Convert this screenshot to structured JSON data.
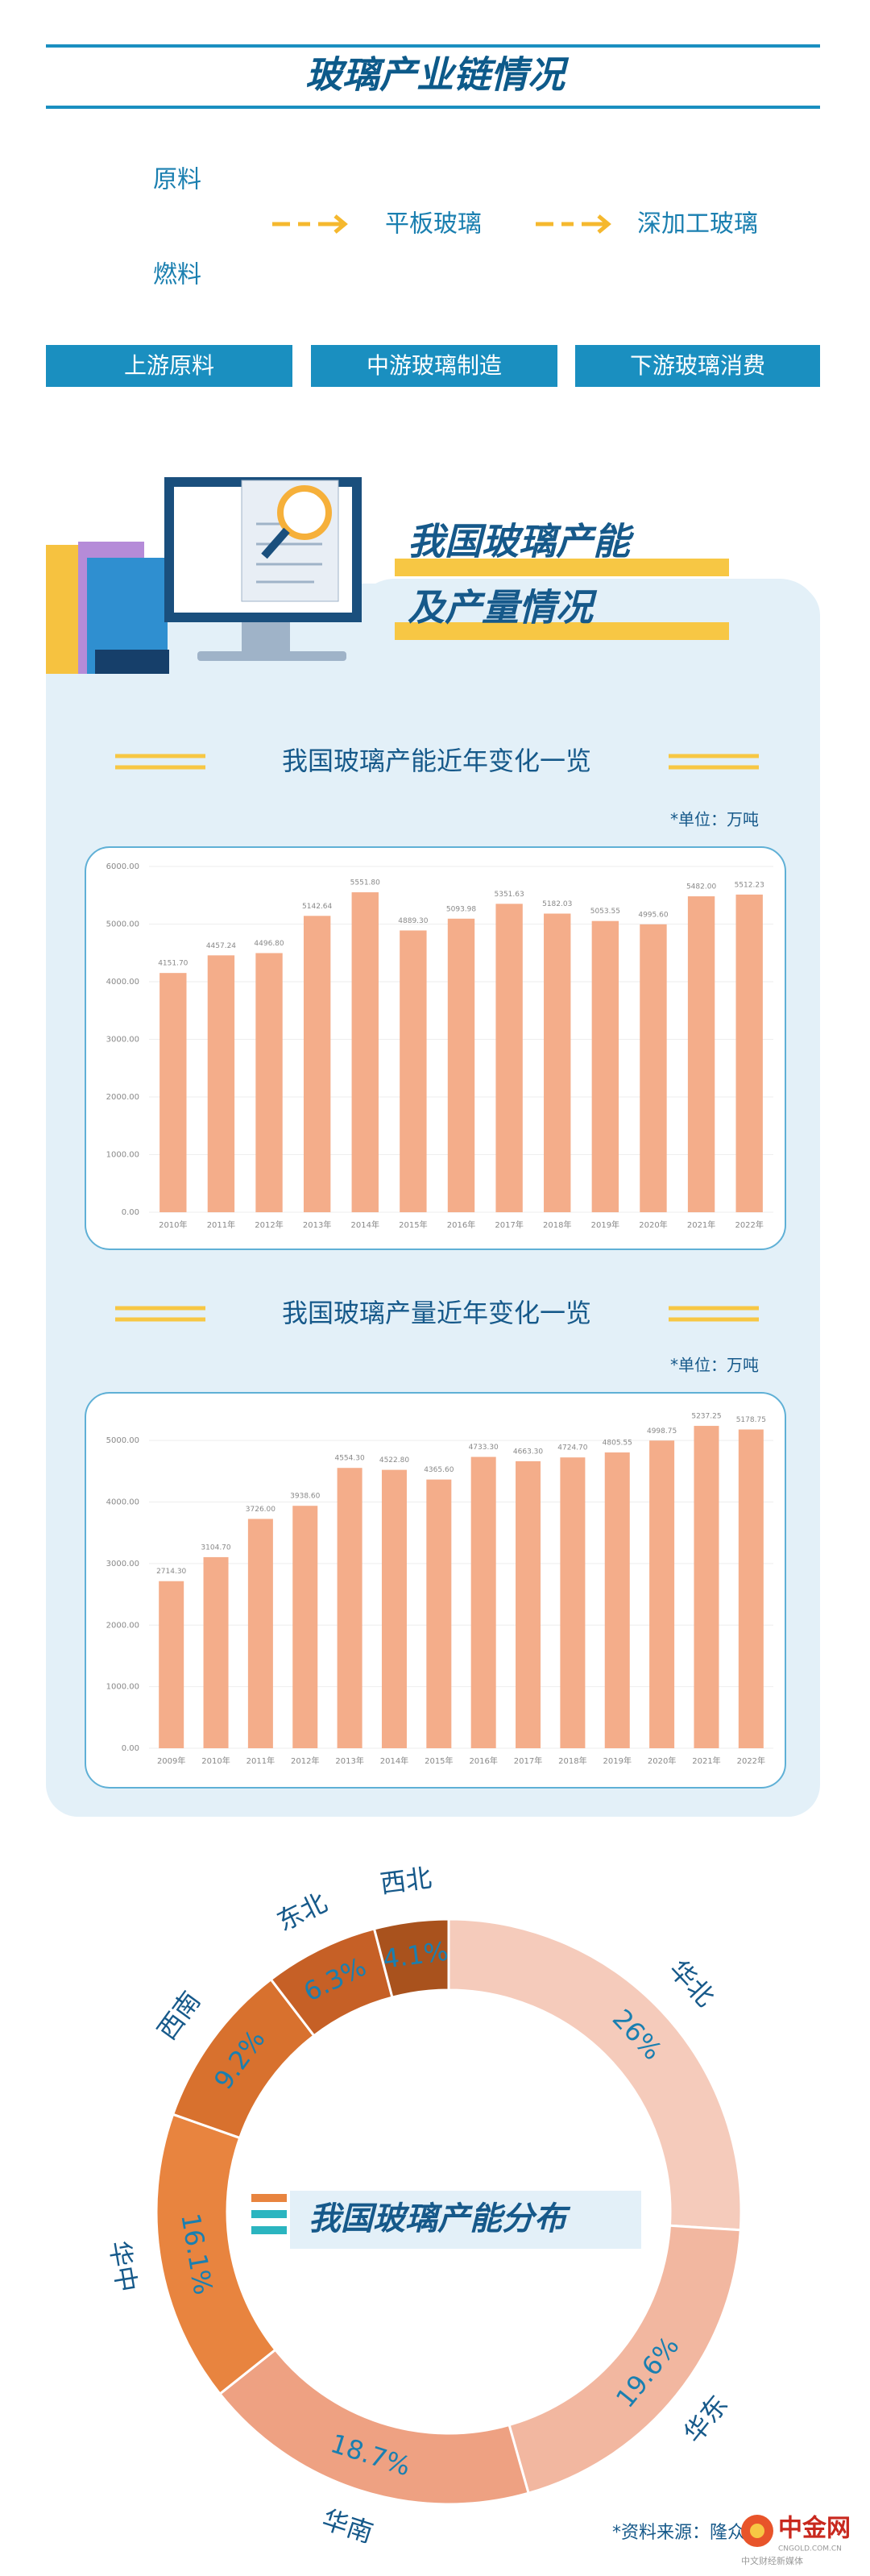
{
  "header": {
    "title": "玻璃产业链情况"
  },
  "flow": {
    "inputs": [
      "原料",
      "燃料"
    ],
    "steps": [
      "平板玻璃",
      "深加工玻璃"
    ],
    "stages": [
      "上游原料",
      "中游玻璃制造",
      "下游玻璃消费"
    ]
  },
  "section": {
    "title_lines": [
      "我国玻璃产能",
      "及产量情况"
    ]
  },
  "chart_data": [
    {
      "type": "bar",
      "title": "我国玻璃产能近年变化一览",
      "unit": "*单位：万吨",
      "categories": [
        "2010年",
        "2011年",
        "2012年",
        "2013年",
        "2014年",
        "2015年",
        "2016年",
        "2017年",
        "2018年",
        "2019年",
        "2020年",
        "2021年",
        "2022年"
      ],
      "values": [
        4151.7,
        4457.24,
        4496.8,
        5142.64,
        5551.8,
        4889.3,
        5093.98,
        5351.63,
        5182.03,
        5053.55,
        4995.6,
        5482,
        5512.23
      ],
      "value_labels": [
        "4151.70",
        "4457.24",
        "4496.80",
        "5142.64",
        "5551.80",
        "4889.30",
        "5093.98",
        "5351.63",
        "5182.03",
        "5053.55",
        "4995.60",
        "5482.00",
        "5512.23"
      ],
      "color": "#f4ad8a",
      "ylim": [
        0,
        6000
      ],
      "yticks": [
        {
          "value": 0,
          "label": "0.00"
        },
        {
          "value": 1000,
          "label": "1000.00"
        },
        {
          "value": 2000,
          "label": "2000.00"
        },
        {
          "value": 3000,
          "label": "3000.00"
        },
        {
          "value": 4000,
          "label": "4000.00"
        },
        {
          "value": 5000,
          "label": "5000.00"
        },
        {
          "value": 6000,
          "label": "6000.00"
        }
      ]
    },
    {
      "type": "bar",
      "title": "我国玻璃产量近年变化一览",
      "unit": "*单位：万吨",
      "categories": [
        "2009年",
        "2010年",
        "2011年",
        "2012年",
        "2013年",
        "2014年",
        "2015年",
        "2016年",
        "2017年",
        "2018年",
        "2019年",
        "2020年",
        "2021年",
        "2022年"
      ],
      "values": [
        2714.3,
        3104.7,
        3726,
        3938.6,
        4554.3,
        4522.8,
        4365.6,
        4733.3,
        4663.3,
        4724.7,
        4805.55,
        4998.75,
        5237.25,
        5178.75
      ],
      "value_labels": [
        "2714.30",
        "3104.70",
        "3726.00",
        "3938.60",
        "4554.30",
        "4522.80",
        "4365.60",
        "4733.30",
        "4663.30",
        "4724.70",
        "4805.55",
        "4998.75",
        "5237.25",
        "5178.75"
      ],
      "color": "#f4ad8a",
      "ylim": [
        0,
        5500
      ],
      "yticks": [
        {
          "value": 0,
          "label": "0.00"
        },
        {
          "value": 1000,
          "label": "1000.00"
        },
        {
          "value": 2000,
          "label": "2000.00"
        },
        {
          "value": 3000,
          "label": "3000.00"
        },
        {
          "value": 4000,
          "label": "4000.00"
        },
        {
          "value": 5000,
          "label": "5000.00"
        }
      ]
    },
    {
      "type": "pie",
      "title": "我国玻璃产能分布",
      "categories": [
        "华北",
        "华东",
        "华南",
        "华中",
        "西南",
        "东北",
        "西北"
      ],
      "values": [
        26,
        19.6,
        18.7,
        16.1,
        9.2,
        6.3,
        4.1
      ],
      "value_labels": [
        "26%",
        "19.6%",
        "18.7%",
        "16.1%",
        "9.2%",
        "6.3%",
        "4.1%"
      ],
      "colors": [
        "#f5cbbb",
        "#f2b7a0",
        "#eea182",
        "#e8843f",
        "#d8712e",
        "#c66026",
        "#a9521d"
      ]
    }
  ],
  "source": "*资料来源：隆众",
  "logo": {
    "name": "中金网",
    "domain": "CNGOLD.COM.CN",
    "tagline": "中文财经新媒体"
  }
}
